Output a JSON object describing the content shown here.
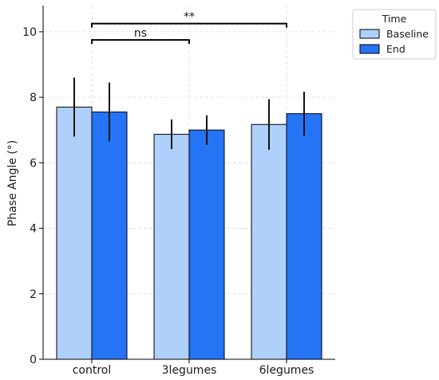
{
  "chart_data": {
    "type": "bar",
    "title": "",
    "xlabel": "",
    "ylabel": "Phase Angle (°)",
    "ylim": [
      0,
      10.8
    ],
    "yticks": [
      0,
      2,
      4,
      6,
      8,
      10
    ],
    "grid": true,
    "categories": [
      "control",
      "3legumes",
      "6legumes"
    ],
    "series": [
      {
        "name": "Baseline",
        "color": "#aed0fb",
        "values": [
          7.7,
          6.87,
          7.17
        ],
        "errors": [
          0.9,
          0.45,
          0.77
        ]
      },
      {
        "name": "End",
        "color": "#2674f6",
        "values": [
          7.55,
          7.0,
          7.5
        ],
        "errors": [
          0.9,
          0.45,
          0.67
        ]
      }
    ],
    "legend": {
      "title": "Time",
      "position": "outside-top-right"
    },
    "annotations": [
      {
        "from": "control",
        "to": "3legumes",
        "label": "ns",
        "y": 9.75
      },
      {
        "from": "control",
        "to": "6legumes",
        "label": "**",
        "y": 10.25
      }
    ]
  }
}
